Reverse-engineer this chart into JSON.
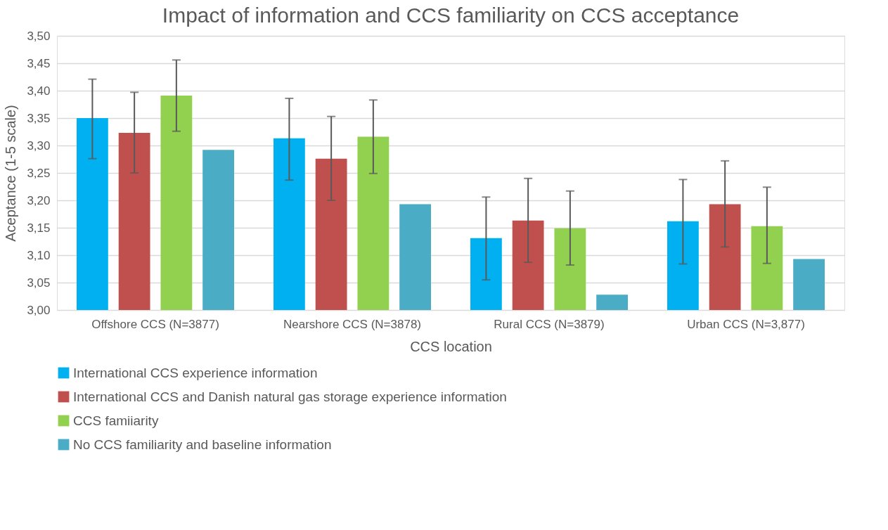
{
  "chart_data": {
    "type": "bar",
    "title": "Impact of information and CCS familiarity on CCS acceptance",
    "xlabel": "CCS location",
    "ylabel": "Aceptance (1-5 scale)",
    "categories": [
      "Offshore CCS (N=3877)",
      "Nearshore CCS (N=3878)",
      "Rural CCS (N=3879)",
      "Urban CCS (N=3,877)"
    ],
    "series": [
      {
        "name": "International CCS experience information",
        "color": "#00b0f0",
        "values": [
          3.35,
          3.313,
          3.131,
          3.162
        ],
        "errors": [
          [
            3.276,
            3.421
          ],
          [
            3.237,
            3.386
          ],
          [
            3.055,
            3.206
          ],
          [
            3.084,
            3.238
          ]
        ]
      },
      {
        "name": "International CCS and Danish natural gas storage experience information",
        "color": "#c0504d",
        "values": [
          3.323,
          3.276,
          3.163,
          3.193
        ],
        "errors": [
          [
            3.25,
            3.397
          ],
          [
            3.2,
            3.353
          ],
          [
            3.087,
            3.24
          ],
          [
            3.115,
            3.272
          ]
        ]
      },
      {
        "name": "CCS famiiarity",
        "color": "#92d050",
        "values": [
          3.391,
          3.316,
          3.149,
          3.153
        ],
        "errors": [
          [
            3.326,
            3.456
          ],
          [
            3.249,
            3.383
          ],
          [
            3.082,
            3.217
          ],
          [
            3.085,
            3.224
          ]
        ]
      },
      {
        "name": "No CCS familiarity and baseline information",
        "color": "#4bacc6",
        "values": [
          3.292,
          3.193,
          3.028,
          3.093
        ]
      }
    ],
    "ylim": [
      3.0,
      3.5
    ],
    "yticks": [
      {
        "value": 3.0,
        "label": "3,00"
      },
      {
        "value": 3.05,
        "label": "3,05"
      },
      {
        "value": 3.1,
        "label": "3,10"
      },
      {
        "value": 3.15,
        "label": "3,15"
      },
      {
        "value": 3.2,
        "label": "3,20"
      },
      {
        "value": 3.25,
        "label": "3,25"
      },
      {
        "value": 3.3,
        "label": "3,30"
      },
      {
        "value": 3.35,
        "label": "3,35"
      },
      {
        "value": 3.4,
        "label": "3,40"
      },
      {
        "value": 3.45,
        "label": "3,45"
      },
      {
        "value": 3.5,
        "label": "3,50"
      }
    ],
    "grid": "y",
    "legend": "bottom"
  }
}
